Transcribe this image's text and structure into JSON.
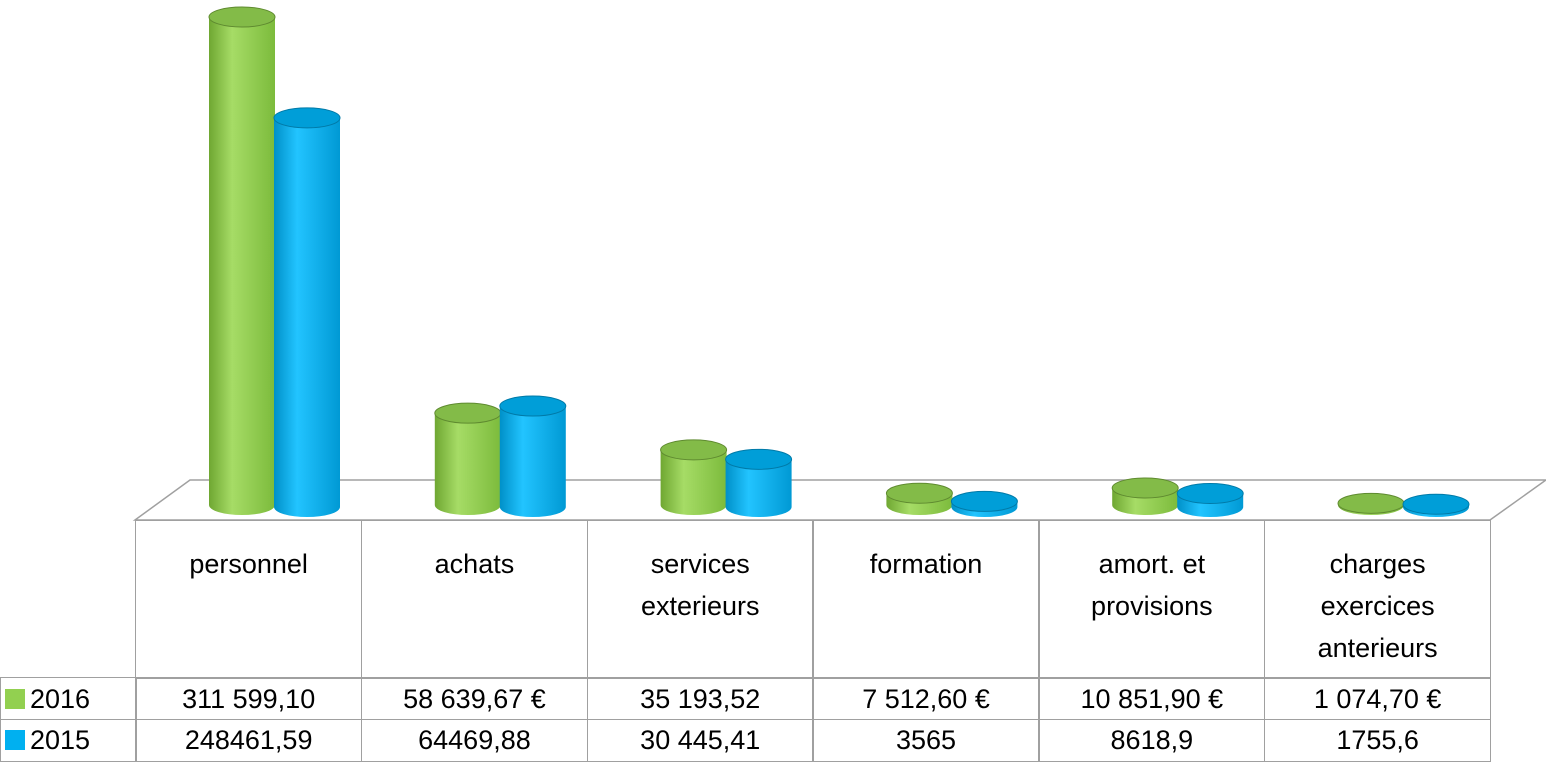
{
  "chart_data": {
    "type": "bar3d",
    "categories": [
      "personnel",
      "achats",
      "services exterieurs",
      "formation",
      "amort. et provisions",
      "charges exercices anterieurs"
    ],
    "series": [
      {
        "name": "2016",
        "color": "#92d050",
        "values": [
          311599.1,
          58639.67,
          35193.52,
          7512.6,
          10851.9,
          1074.7
        ],
        "value_labels": [
          "311 599,10",
          "58 639,67 €",
          "35 193,52",
          "7 512,60 €",
          "10 851,90 €",
          "1 074,70 €"
        ]
      },
      {
        "name": "2015",
        "color": "#00b0f0",
        "values": [
          248461.59,
          64469.88,
          30445.41,
          3565,
          8618.9,
          1755.6
        ],
        "value_labels": [
          "248461,59",
          "64469,88",
          "30 445,41",
          "3565",
          "8618,9",
          "1755,6"
        ]
      }
    ]
  }
}
